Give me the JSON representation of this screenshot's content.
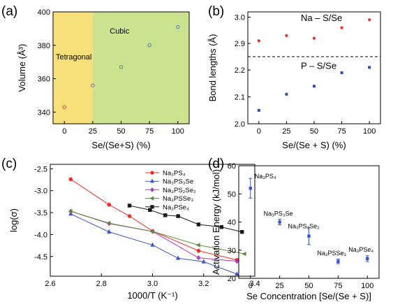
{
  "chart_data": [
    {
      "panel": "(a)",
      "type": "scatter",
      "xlabel": "Se/(Se+S) (%)",
      "ylabel": "Volume (Å³)",
      "xlim": [
        -10,
        110
      ],
      "ylim": [
        333,
        400
      ],
      "xticks": [
        0,
        25,
        50,
        75,
        100
      ],
      "yticks": [
        340,
        360,
        380,
        400
      ],
      "regions": [
        {
          "label": "Tetragonal",
          "from": -10,
          "to": 25,
          "color": "#f7e07a"
        },
        {
          "label": "Cubic",
          "from": 25,
          "to": 110,
          "color": "#cbe38f"
        }
      ],
      "x": [
        0,
        25,
        50,
        75,
        100
      ],
      "y": [
        343,
        356,
        367,
        380,
        391
      ],
      "point_colors": [
        "#c0504d",
        "#7a6a8c",
        "#4a7fb0",
        "#4a7fb0",
        "#4a7fb0"
      ]
    },
    {
      "panel": "(b)",
      "type": "scatter",
      "xlabel": "Se/(Se + S) (%)",
      "ylabel": "Bond lengths (Å)",
      "xticks": [
        0,
        25,
        50,
        75,
        100
      ],
      "upper": {
        "ylim": [
          2.85,
          3.02
        ],
        "yticks": [
          2.9,
          3.0
        ]
      },
      "lower": {
        "ylim": [
          2.0,
          2.25
        ],
        "yticks": [
          2.0,
          2.1,
          2.2
        ]
      },
      "series": [
        {
          "name": "Na – S/Se",
          "color": "#e8302a",
          "x": [
            0,
            25,
            50,
            75,
            100
          ],
          "values": [
            2.91,
            2.93,
            2.92,
            2.96,
            2.99
          ]
        },
        {
          "name": "P – S/Se",
          "color": "#2f4fa8",
          "x": [
            0,
            25,
            50,
            75,
            100
          ],
          "values": [
            2.05,
            2.11,
            2.14,
            2.19,
            2.21
          ]
        }
      ]
    },
    {
      "panel": "(c)",
      "type": "line",
      "xlabel": "1000/T (K⁻¹)",
      "ylabel": "log(σ)",
      "xlim": [
        2.6,
        3.4
      ],
      "ylim": [
        -4.95,
        -2.4
      ],
      "xticks": [
        2.6,
        2.8,
        3.0,
        3.2,
        3.4
      ],
      "yticks": [
        -2.5,
        -3.0,
        -3.5,
        -4.0,
        -4.5
      ],
      "legend": "top-right",
      "series": [
        {
          "name": "Na₃PS₄",
          "color": "#e8302a",
          "marker": "circle",
          "x": [
            2.68,
            2.83,
            2.91,
            3.0,
            3.18,
            3.33
          ],
          "values": [
            -2.74,
            -3.32,
            -3.58,
            -3.92,
            -4.37,
            -4.58
          ]
        },
        {
          "name": "Na₃PS₃Se",
          "color": "#3a55c8",
          "marker": "triangle-up",
          "x": [
            2.68,
            2.83,
            3.0,
            3.1,
            3.2,
            3.33
          ],
          "values": [
            -3.53,
            -3.94,
            -4.24,
            -4.54,
            -4.62,
            -4.9
          ]
        },
        {
          "name": "Na₃PS₂Se₂",
          "color": "#b832c4",
          "marker": "diamond",
          "x": [
            2.68,
            2.83,
            3.0,
            3.18,
            3.33
          ],
          "values": [
            -3.47,
            -3.75,
            -3.93,
            -4.53,
            -4.61
          ]
        },
        {
          "name": "Na₃PSSe₃",
          "color": "#5f8a3a",
          "marker": "triangle-left",
          "x": [
            2.68,
            2.83,
            3.0,
            3.18,
            3.36
          ],
          "values": [
            -3.47,
            -3.74,
            -3.93,
            -4.24,
            -4.44
          ]
        },
        {
          "name": "Na₃PSe₄",
          "color": "#1a1a1a",
          "marker": "square",
          "x": [
            2.91,
            2.99,
            3.05,
            3.1,
            3.18,
            3.27,
            3.35
          ],
          "values": [
            -3.34,
            -3.44,
            -3.56,
            -3.58,
            -3.77,
            -3.83,
            -3.94
          ]
        }
      ]
    },
    {
      "panel": "(d)",
      "type": "scatter",
      "xlabel": "Se Concentration [Se/(Se + S)]",
      "ylabel": "Activation Energy (kJ/mol)",
      "xlim": [
        -10,
        110
      ],
      "ylim": [
        20,
        60
      ],
      "xticks": [
        0,
        25,
        50,
        75,
        100
      ],
      "yticks": [
        20,
        30,
        40,
        50,
        60
      ],
      "x": [
        0,
        25,
        50,
        75,
        100
      ],
      "y": [
        52,
        40,
        35,
        26,
        27
      ],
      "errors": [
        3.5,
        1.0,
        3.0,
        0.8,
        1.0
      ],
      "annotations": [
        "Na₃PS₄",
        "Na₃PS₃Se",
        "Na₃PS₂Se₂",
        "Na₃PSSe₃",
        "Na₃PSe₄"
      ],
      "color": "#3a55c8"
    }
  ]
}
